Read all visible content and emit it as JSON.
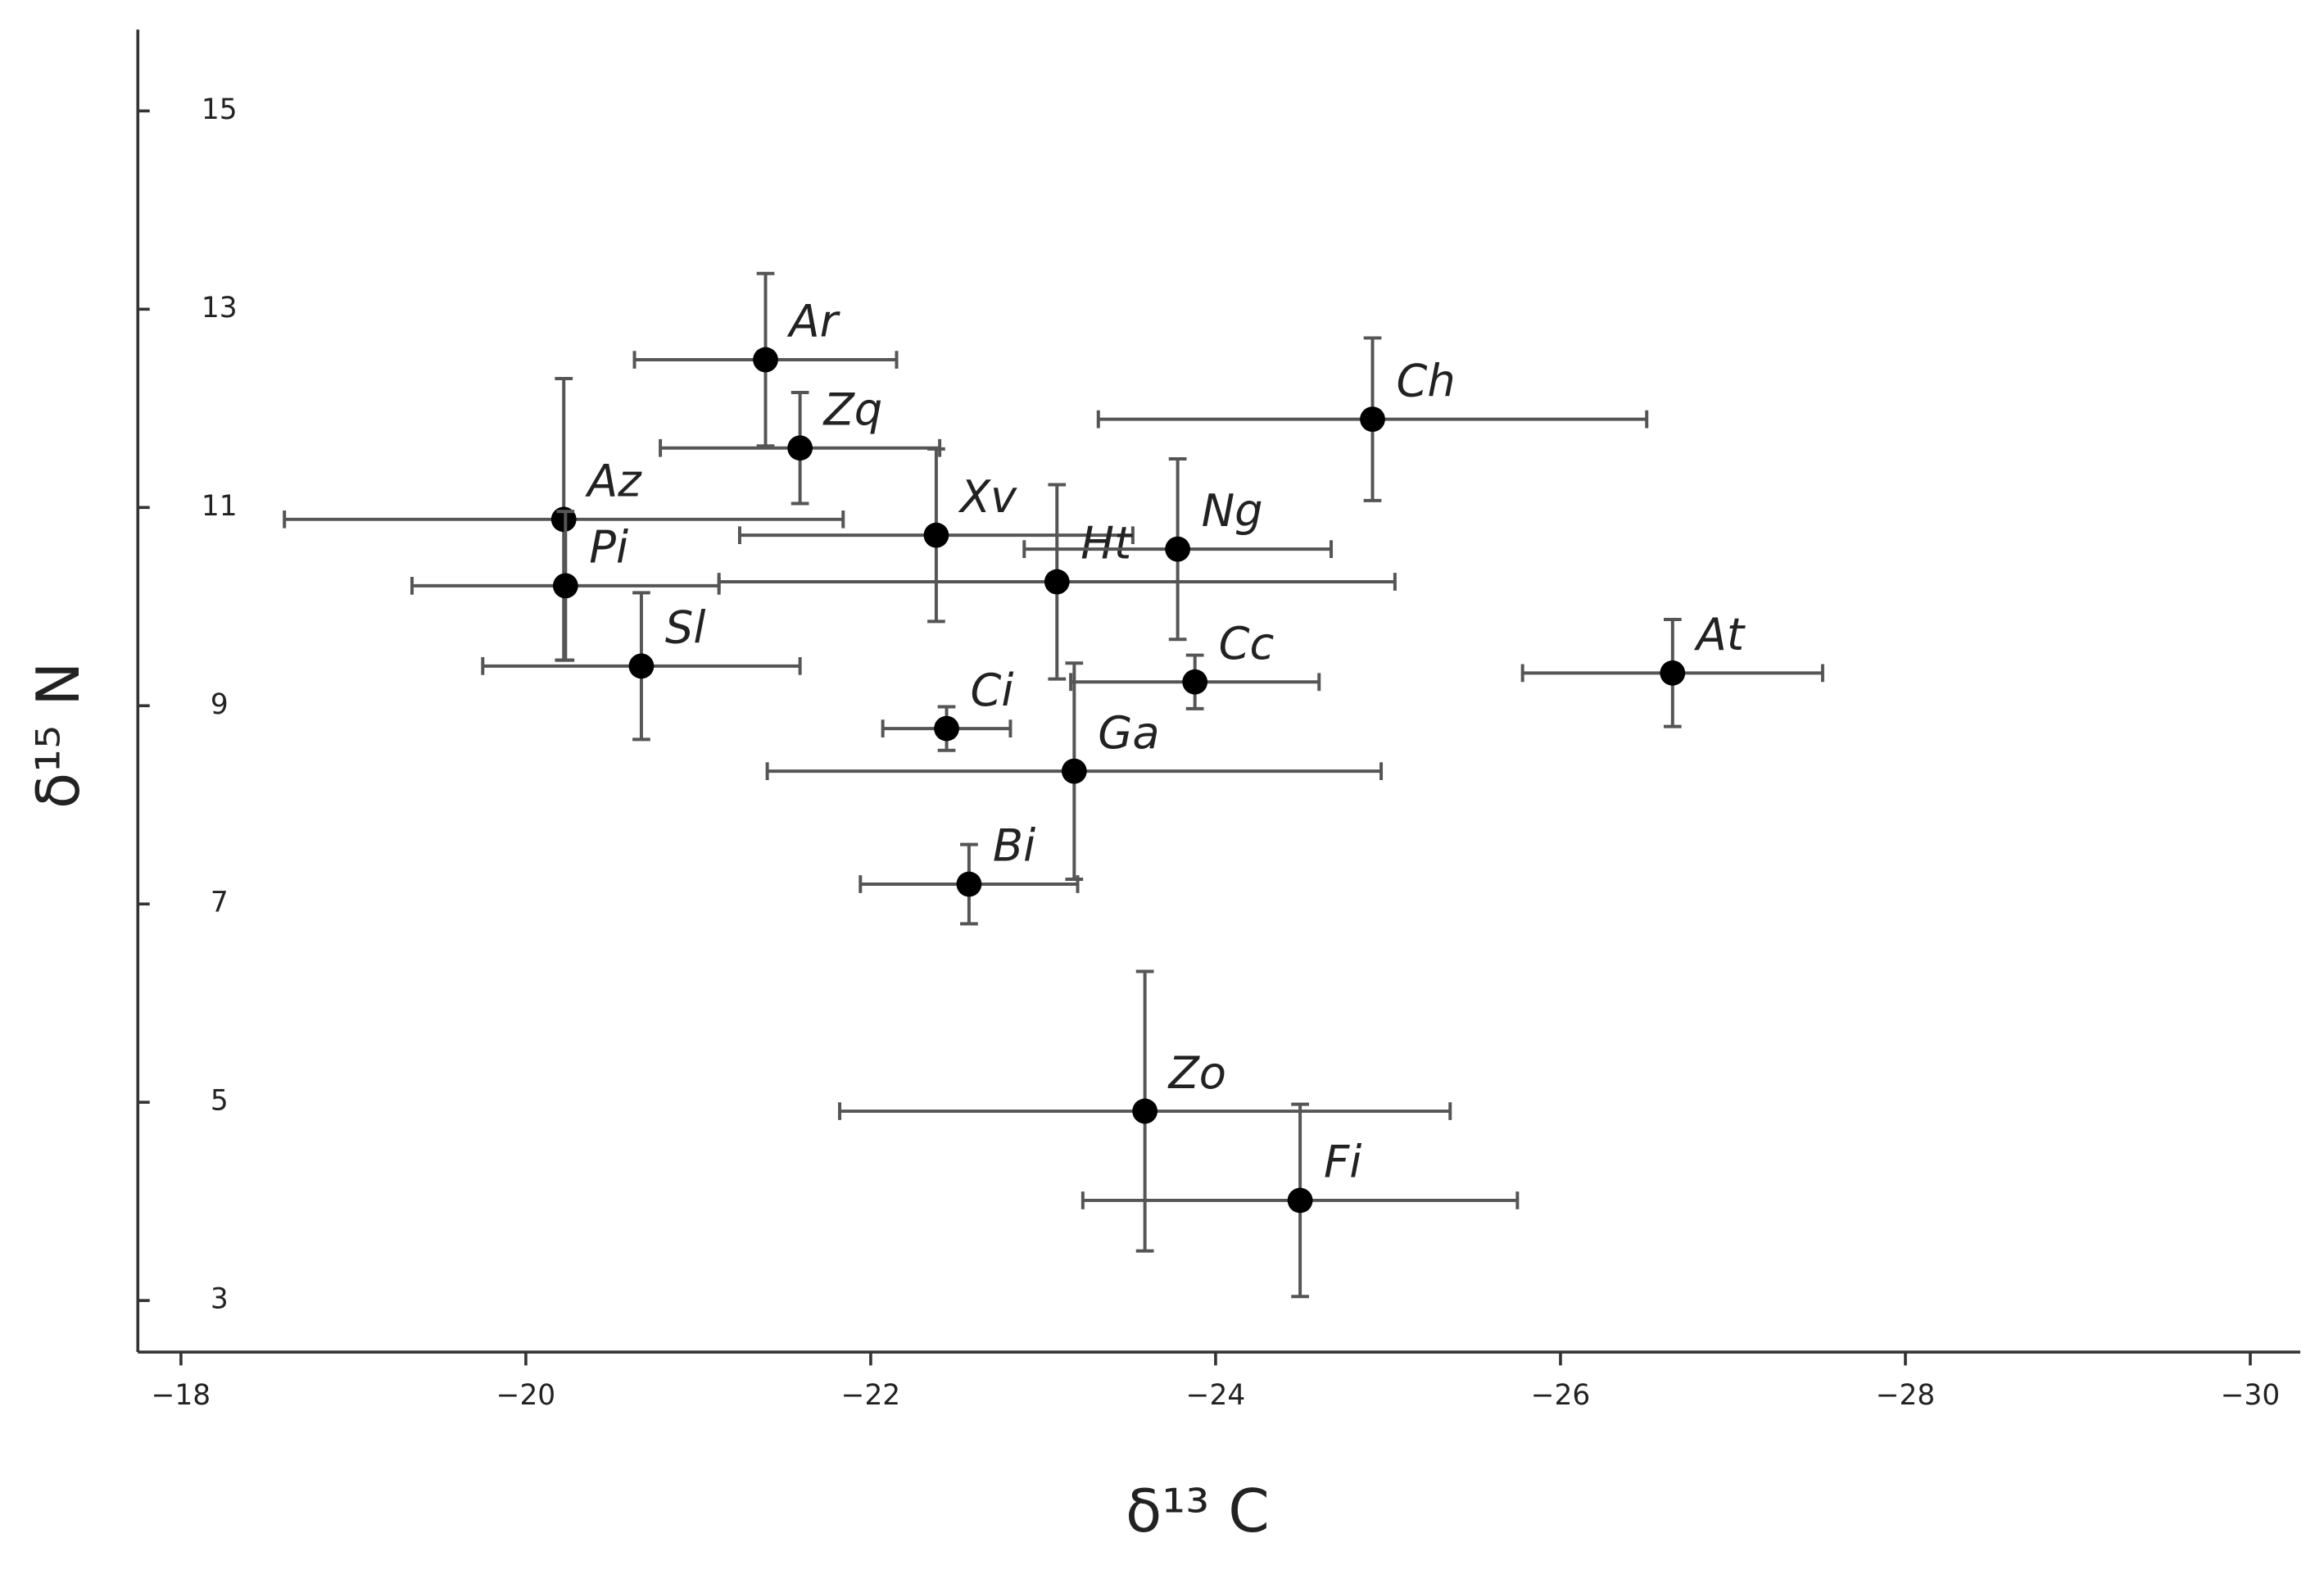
{
  "chart_data": {
    "type": "scatter",
    "x_label": "δ¹³ C",
    "y_label": "δ¹⁵ N",
    "labels": [
      "Ar",
      "Zq",
      "Az",
      "Pi",
      "Xv",
      "Ht",
      "Ng",
      "Ch",
      "Sl",
      "Cc",
      "At",
      "Ci",
      "Ga",
      "Bi",
      "Zo",
      "Fi"
    ],
    "x": [
      -21.39,
      -21.59,
      -20.22,
      -20.23,
      -22.38,
      -23.08,
      -23.78,
      -24.91,
      -20.67,
      -23.88,
      -26.65,
      -22.44,
      -23.18,
      -22.57,
      -23.59,
      -24.49
    ],
    "values": [
      12.49,
      11.6,
      10.88,
      10.21,
      10.72,
      10.25,
      10.58,
      11.89,
      9.4,
      9.24,
      9.33,
      8.77,
      8.34,
      7.2,
      4.91,
      4.01
    ],
    "xerr": [
      0.76,
      0.81,
      1.62,
      0.89,
      1.14,
      1.96,
      0.89,
      1.59,
      0.92,
      0.72,
      0.87,
      0.37,
      1.78,
      0.63,
      1.77,
      1.26
    ],
    "yerr": [
      0.87,
      0.56,
      1.42,
      0.75,
      0.87,
      0.98,
      0.91,
      0.82,
      0.74,
      0.27,
      0.54,
      0.22,
      1.09,
      0.4,
      1.41,
      0.97
    ],
    "color": "#000000",
    "error_color": "#555555",
    "xlim": [
      -17.75,
      -30.29
    ],
    "ylim": [
      2.48,
      15.82
    ],
    "xticks": [
      {
        "value": -18,
        "label": "−18"
      },
      {
        "value": -20,
        "label": "−20"
      },
      {
        "value": -22,
        "label": "−22"
      },
      {
        "value": -24,
        "label": "−24"
      },
      {
        "value": -26,
        "label": "−26"
      },
      {
        "value": -28,
        "label": "−28"
      },
      {
        "value": -30,
        "label": "−30"
      }
    ],
    "yticks": [
      3,
      5,
      7,
      9,
      11,
      13,
      15
    ]
  }
}
